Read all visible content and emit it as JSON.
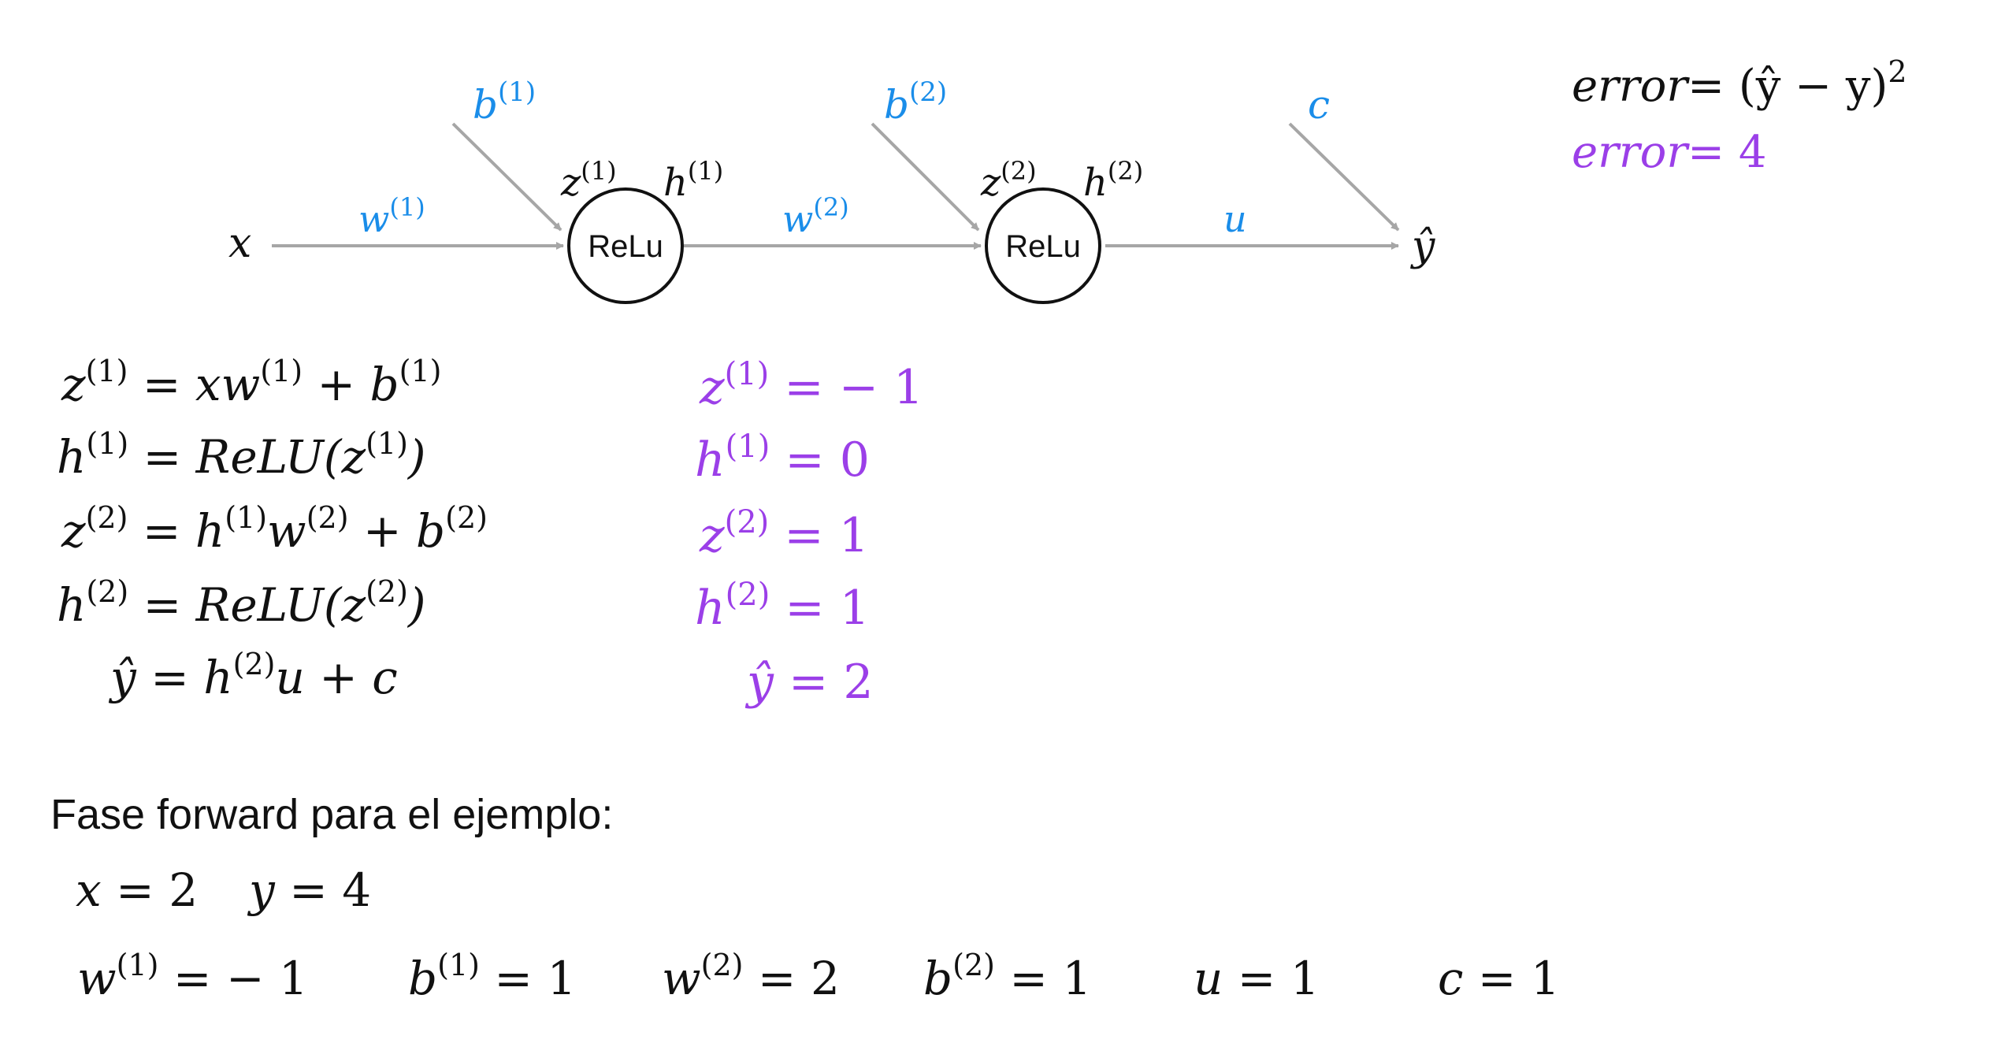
{
  "colors": {
    "black": "#111111",
    "param_blue": "#1a8de9",
    "value_purple": "#9b3fe8",
    "arrow_gray": "#a6a6a6"
  },
  "diagram": {
    "input": {
      "base": "x",
      "sup": ""
    },
    "neuron1": {
      "label": "ReLu",
      "z": {
        "base": "z",
        "sup": "(1)"
      },
      "h": {
        "base": "h",
        "sup": "(1)"
      },
      "bias": {
        "base": "b",
        "sup": "(1)"
      },
      "weight": {
        "base": "w",
        "sup": "(1)"
      }
    },
    "neuron2": {
      "label": "ReLu",
      "z": {
        "base": "z",
        "sup": "(2)"
      },
      "h": {
        "base": "h",
        "sup": "(2)"
      },
      "bias": {
        "base": "b",
        "sup": "(2)"
      },
      "weight": {
        "base": "w",
        "sup": "(2)"
      }
    },
    "output": {
      "weight": {
        "base": "u",
        "sup": ""
      },
      "bias": {
        "base": "c",
        "sup": ""
      },
      "yhat": {
        "base": "ŷ",
        "sup": ""
      }
    }
  },
  "error": {
    "formula": {
      "lhs": "error",
      "rhs": "= (ŷ − y)",
      "sup": "2"
    },
    "value": {
      "lhs": "error",
      "rhs": "= 4"
    }
  },
  "equations": [
    {
      "lhs": {
        "base": "z",
        "sup": "(1)"
      },
      "rhs": [
        {
          "t": " = xw"
        },
        {
          "s": "(1)"
        },
        {
          "t": " + b"
        },
        {
          "s": "(1)"
        }
      ]
    },
    {
      "lhs": {
        "base": "h",
        "sup": "(1)"
      },
      "rhs": [
        {
          "t": " = ReLU(z"
        },
        {
          "s": "(1)"
        },
        {
          "t": ")"
        }
      ]
    },
    {
      "lhs": {
        "base": "z",
        "sup": "(2)"
      },
      "rhs": [
        {
          "t": " = h"
        },
        {
          "s": "(1)"
        },
        {
          "t": "w"
        },
        {
          "s": "(2)"
        },
        {
          "t": " + b"
        },
        {
          "s": "(2)"
        }
      ]
    },
    {
      "lhs": {
        "base": "h",
        "sup": "(2)"
      },
      "rhs": [
        {
          "t": " = ReLU(z"
        },
        {
          "s": "(2)"
        },
        {
          "t": ")"
        }
      ]
    },
    {
      "lhs": {
        "base": "ŷ",
        "sup": ""
      },
      "rhs": [
        {
          "t": " = h"
        },
        {
          "s": "(2)"
        },
        {
          "t": "u + c"
        }
      ]
    }
  ],
  "values": [
    {
      "base": "z",
      "sup": "(1)",
      "rhs": " = − 1"
    },
    {
      "base": "h",
      "sup": "(1)",
      "rhs": " = 0"
    },
    {
      "base": "z",
      "sup": "(2)",
      "rhs": " = 1"
    },
    {
      "base": "h",
      "sup": "(2)",
      "rhs": " = 1"
    },
    {
      "base": "ŷ",
      "sup": "",
      "rhs": " = 2"
    }
  ],
  "example": {
    "heading": "Fase forward para el ejemplo:",
    "inputs": [
      {
        "base": "x",
        "sup": "",
        "rhs": " = 2"
      },
      {
        "base": "y",
        "sup": "",
        "rhs": " = 4"
      }
    ],
    "params": [
      {
        "base": "w",
        "sup": "(1)",
        "rhs": " = − 1"
      },
      {
        "base": "b",
        "sup": "(1)",
        "rhs": " = 1"
      },
      {
        "base": "w",
        "sup": "(2)",
        "rhs": " = 2"
      },
      {
        "base": "b",
        "sup": "(2)",
        "rhs": " = 1"
      },
      {
        "base": "u",
        "sup": "",
        "rhs": " = 1"
      },
      {
        "base": "c",
        "sup": "",
        "rhs": " = 1"
      }
    ]
  }
}
